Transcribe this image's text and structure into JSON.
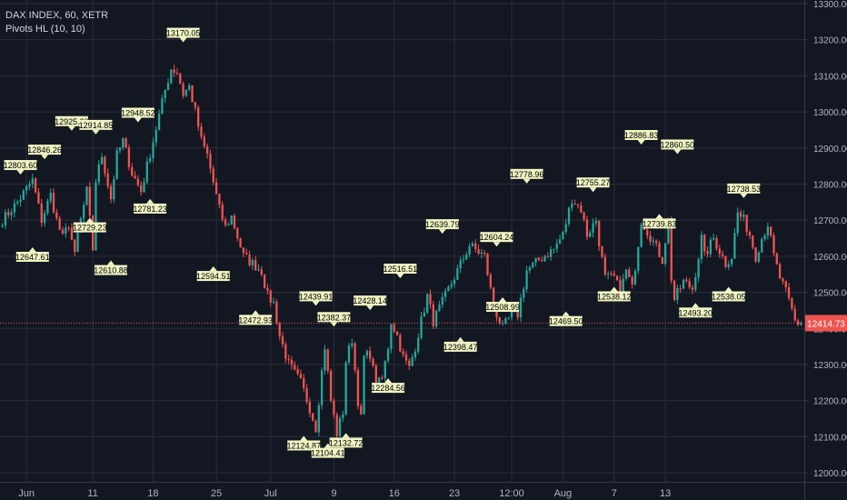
{
  "header": {
    "symbol_line": "DAX INDEX, 60, XETR",
    "indicator_line": "Pivots HL (10, 10)"
  },
  "colors": {
    "background": "#131722",
    "up": "#26a69a",
    "down": "#ef5350",
    "grid": "#2a2e39",
    "axis_text": "#b2b5be",
    "pivot_label_bg": "#f0f4c3",
    "price_line": "#ef5350"
  },
  "chart_data": {
    "type": "candlestick",
    "title": "DAX INDEX, 60, XETR",
    "indicator": "Pivots HL (10, 10)",
    "y_range": [
      11975,
      13310
    ],
    "y_ticks": [
      12000,
      12100,
      12200,
      12300,
      12400,
      12500,
      12600,
      12700,
      12800,
      12900,
      13000,
      13100,
      13200,
      13300
    ],
    "y_tick_labels": [
      "12000.00",
      "12100.00",
      "12200.00",
      "12300.00",
      "12400.00",
      "12500.00",
      "12600.00",
      "12700.00",
      "12800.00",
      "12900.00",
      "13000.00",
      "13100.00",
      "13200.00",
      "13300.00"
    ],
    "x_labels": [
      "Jun",
      "11",
      "18",
      "25",
      "Jul",
      "9",
      "16",
      "23",
      "12:00",
      "Aug",
      "7",
      "13"
    ],
    "x_label_bars": [
      8,
      30,
      50,
      71,
      89,
      110,
      130,
      150,
      169,
      186,
      203,
      220
    ],
    "bar_count": 222,
    "last_price": 12414.73,
    "last_price_label": "12414.73",
    "path": [
      [
        0,
        12700
      ],
      [
        5,
        12750
      ],
      [
        10,
        12810
      ],
      [
        13,
        12700
      ],
      [
        16,
        12770
      ],
      [
        18,
        12700
      ],
      [
        20,
        12650
      ],
      [
        22,
        12690
      ],
      [
        24,
        12600
      ],
      [
        25,
        12660
      ],
      [
        28,
        12780
      ],
      [
        30,
        12620
      ],
      [
        31,
        12810
      ],
      [
        33,
        12880
      ],
      [
        36,
        12760
      ],
      [
        38,
        12880
      ],
      [
        40,
        12920
      ],
      [
        43,
        12830
      ],
      [
        46,
        12780
      ],
      [
        50,
        12920
      ],
      [
        54,
        13060
      ],
      [
        56,
        13120
      ],
      [
        58,
        13110
      ],
      [
        60,
        13050
      ],
      [
        62,
        13070
      ],
      [
        64,
        13000
      ],
      [
        66,
        12920
      ],
      [
        68,
        12880
      ],
      [
        72,
        12730
      ],
      [
        74,
        12680
      ],
      [
        76,
        12710
      ],
      [
        80,
        12600
      ],
      [
        83,
        12580
      ],
      [
        86,
        12560
      ],
      [
        88,
        12490
      ],
      [
        90,
        12470
      ],
      [
        92,
        12380
      ],
      [
        95,
        12300
      ],
      [
        99,
        12250
      ],
      [
        102,
        12180
      ],
      [
        104,
        12125
      ],
      [
        106,
        12280
      ],
      [
        107,
        12350
      ],
      [
        109,
        12200
      ],
      [
        111,
        12110
      ],
      [
        113,
        12170
      ],
      [
        114,
        12310
      ],
      [
        116,
        12370
      ],
      [
        118,
        12200
      ],
      [
        119,
        12150
      ],
      [
        120,
        12320
      ],
      [
        122,
        12330
      ],
      [
        124,
        12240
      ],
      [
        126,
        12260
      ],
      [
        128,
        12350
      ],
      [
        129,
        12420
      ],
      [
        131,
        12380
      ],
      [
        133,
        12320
      ],
      [
        135,
        12290
      ],
      [
        137,
        12350
      ],
      [
        139,
        12420
      ],
      [
        141,
        12490
      ],
      [
        143,
        12420
      ],
      [
        147,
        12490
      ],
      [
        151,
        12560
      ],
      [
        155,
        12630
      ],
      [
        160,
        12600
      ],
      [
        163,
        12460
      ],
      [
        166,
        12400
      ],
      [
        169,
        12440
      ],
      [
        171,
        12440
      ],
      [
        174,
        12560
      ],
      [
        178,
        12590
      ],
      [
        183,
        12620
      ],
      [
        186,
        12660
      ],
      [
        189,
        12760
      ],
      [
        192,
        12730
      ],
      [
        194,
        12660
      ],
      [
        197,
        12700
      ],
      [
        198,
        12640
      ],
      [
        200,
        12540
      ],
      [
        203,
        12540
      ],
      [
        205,
        12500
      ],
      [
        207,
        12560
      ],
      [
        209,
        12510
      ],
      [
        212,
        12700
      ],
      [
        216,
        12640
      ],
      [
        219,
        12590
      ],
      [
        221,
        12700
      ],
      [
        221,
        12720
      ],
      [
        222,
        12540
      ],
      [
        222,
        12400
      ],
      [
        223,
        12480
      ],
      [
        226,
        12530
      ],
      [
        229,
        12510
      ],
      [
        231,
        12600
      ],
      [
        232,
        12650
      ],
      [
        233,
        12600
      ],
      [
        236,
        12650
      ],
      [
        240,
        12580
      ],
      [
        242,
        12600
      ],
      [
        244,
        12720
      ],
      [
        246,
        12700
      ],
      [
        248,
        12660
      ],
      [
        250,
        12600
      ],
      [
        252,
        12650
      ],
      [
        254,
        12690
      ],
      [
        256,
        12600
      ],
      [
        258,
        12540
      ],
      [
        260,
        12500
      ],
      [
        262,
        12450
      ],
      [
        263,
        12420
      ],
      [
        264,
        12414.73
      ]
    ],
    "pivots": [
      {
        "bar": 6,
        "price": 12803.6,
        "label": "12803.60",
        "kind": "high"
      },
      {
        "bar": 10,
        "price": 12647.61,
        "label": "12647.61",
        "kind": "low"
      },
      {
        "bar": 14,
        "price": 12846.26,
        "label": "12846.26",
        "kind": "high"
      },
      {
        "bar": 23,
        "price": 12925.2,
        "label": "12925.20",
        "kind": "high"
      },
      {
        "bar": 29,
        "price": 12729.23,
        "label": "12729.23",
        "kind": "low"
      },
      {
        "bar": 31,
        "price": 12914.85,
        "label": "12914.85",
        "kind": "high"
      },
      {
        "bar": 36,
        "price": 12610.88,
        "label": "12610.88",
        "kind": "low"
      },
      {
        "bar": 45,
        "price": 12948.52,
        "label": "12948.52",
        "kind": "high"
      },
      {
        "bar": 49,
        "price": 12781.23,
        "label": "12781.23",
        "kind": "low"
      },
      {
        "bar": 60,
        "price": 13170.05,
        "label": "13170.05",
        "kind": "high"
      },
      {
        "bar": 70,
        "price": 12594.51,
        "label": "12594.51",
        "kind": "low"
      },
      {
        "bar": 84,
        "price": 12472.93,
        "label": "12472.93",
        "kind": "low"
      },
      {
        "bar": 104,
        "price": 12439.91,
        "label": "12439.91",
        "kind": "high"
      },
      {
        "bar": 100,
        "price": 12124.87,
        "label": "12124.87",
        "kind": "low"
      },
      {
        "bar": 108,
        "price": 12104.41,
        "label": "12104.41",
        "kind": "low"
      },
      {
        "bar": 110,
        "price": 12382.37,
        "label": "12382.37",
        "kind": "high"
      },
      {
        "bar": 114,
        "price": 12132.72,
        "label": "12132.72",
        "kind": "low"
      },
      {
        "bar": 122,
        "price": 12428.14,
        "label": "12428.14",
        "kind": "high"
      },
      {
        "bar": 128,
        "price": 12284.56,
        "label": "12284.56",
        "kind": "low"
      },
      {
        "bar": 132,
        "price": 12516.51,
        "label": "12516.51",
        "kind": "high"
      },
      {
        "bar": 146,
        "price": 12639.79,
        "label": "12639.79",
        "kind": "high"
      },
      {
        "bar": 152,
        "price": 12398.47,
        "label": "12398.47",
        "kind": "low"
      },
      {
        "bar": 164,
        "price": 12604.24,
        "label": "12604.24",
        "kind": "high"
      },
      {
        "bar": 166,
        "price": 12508.99,
        "label": "12508.99",
        "kind": "low"
      },
      {
        "bar": 174,
        "price": 12778.96,
        "label": "12778.96",
        "kind": "high"
      },
      {
        "bar": 187,
        "price": 12469.5,
        "label": "12469.50",
        "kind": "low"
      },
      {
        "bar": 196,
        "price": 12755.27,
        "label": "12755.27",
        "kind": "high"
      },
      {
        "bar": 203,
        "price": 12538.12,
        "label": "12538.12",
        "kind": "low"
      },
      {
        "bar": 212,
        "price": 12886.83,
        "label": "12886.83",
        "kind": "high"
      },
      {
        "bar": 218,
        "price": 12739.83,
        "label": "12739.83",
        "kind": "low"
      },
      {
        "bar": 224,
        "price": 12860.5,
        "label": "12860.50",
        "kind": "high"
      },
      {
        "bar": 230,
        "price": 12493.2,
        "label": "12493.20",
        "kind": "low"
      },
      {
        "bar": 241,
        "price": 12538.05,
        "label": "12538.05",
        "kind": "low"
      },
      {
        "bar": 246,
        "price": 12738.53,
        "label": "12738.53",
        "kind": "high"
      }
    ]
  }
}
